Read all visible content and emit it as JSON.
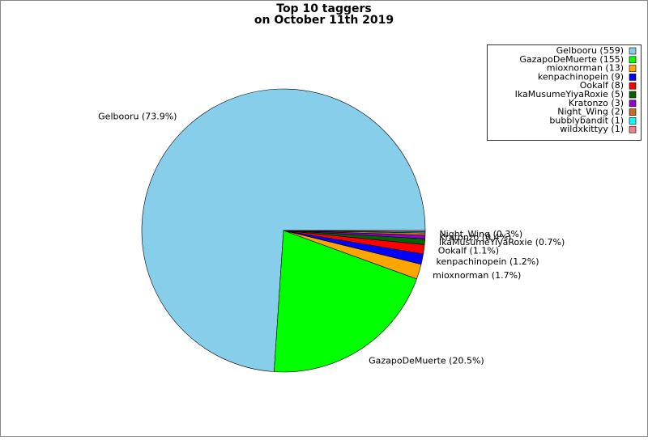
{
  "chart_data": {
    "type": "pie",
    "title": [
      "Top 10 taggers",
      "on October 11th 2019"
    ],
    "categories": [
      "Gelbooru",
      "GazapoDeMuerte",
      "mioxnorman",
      "kenpachinopein",
      "Ookalf",
      "IkaMusumeYiyaRoxie",
      "Kratonzo",
      "Night_Wing",
      "bubblybandit",
      "wildxkittyy"
    ],
    "values": [
      559,
      155,
      13,
      9,
      8,
      5,
      3,
      2,
      1,
      1
    ],
    "legend_labels": [
      "Gelbooru (559)",
      "GazapoDeMuerte (155)",
      "mioxnorman (13)",
      "kenpachinopein (9)",
      "Ookalf (8)",
      "IkaMusumeYiyaRoxie (5)",
      "Kratonzo (3)",
      "Night_Wing (2)",
      "bubblybandit (1)",
      "wildxkittyy (1)"
    ],
    "slice_labels": [
      "Gelbooru (73.9%)",
      "GazapoDeMuerte (20.5%)",
      "mioxnorman (1.7%)",
      "kenpachinopein (1.2%)",
      "Ookalf (1.1%)",
      "IkaMusumeYiyaRoxie (0.7%)",
      "Kratonzo (0.4%)",
      "Night_Wing (0.3%)",
      null,
      null
    ],
    "colors": [
      "#87ceeb",
      "#00ff00",
      "#ffa500",
      "#0000ff",
      "#ff0000",
      "#006400",
      "#9400d3",
      "#d2691e",
      "#00ffff",
      "#f08080"
    ],
    "legend": "upper right"
  }
}
